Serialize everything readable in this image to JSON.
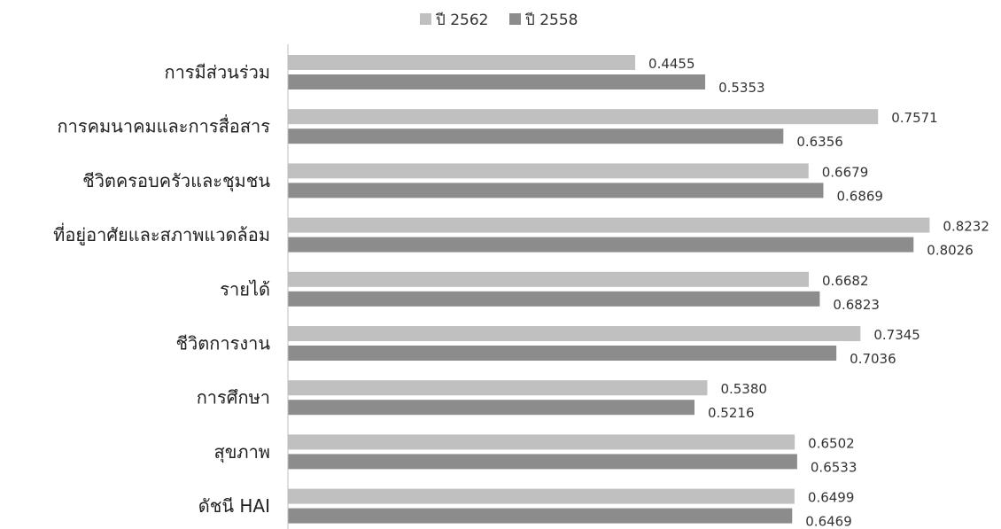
{
  "chart_data": {
    "type": "bar",
    "orientation": "horizontal",
    "categories": [
      "การมีส่วนร่วม",
      "การคมนาคมและการสื่อสาร",
      "ชีวิตครอบครัวและชุมชน",
      "ที่อยู่อาศัยและสภาพแวดล้อม",
      "รายได้",
      "ชีวิตการงาน",
      "การศึกษา",
      "สุขภาพ",
      "ดัชนี HAI"
    ],
    "series": [
      {
        "name": "ปี 2562",
        "color": "#c0c0c0",
        "values": [
          0.4455,
          0.7571,
          0.6679,
          0.8232,
          0.6682,
          0.7345,
          0.538,
          0.6502,
          0.6499
        ],
        "labels": [
          "0.4455",
          "0.7571",
          "0.6679",
          "0.8232",
          "0.6682",
          "0.7345",
          "0.5380",
          "0.6502",
          "0.6499"
        ]
      },
      {
        "name": "ปี 2558",
        "color": "#8c8c8c",
        "values": [
          0.5353,
          0.6356,
          0.6869,
          0.8026,
          0.6823,
          0.7036,
          0.5216,
          0.6533,
          0.6469
        ],
        "labels": [
          "0.5353",
          "0.6356",
          "0.6869",
          "0.8026",
          "0.6823",
          "0.7036",
          "0.5216",
          "0.6533",
          "0.6469"
        ]
      }
    ],
    "xlim": [
      0,
      0.9
    ],
    "legend": "top-center",
    "grid": false
  }
}
